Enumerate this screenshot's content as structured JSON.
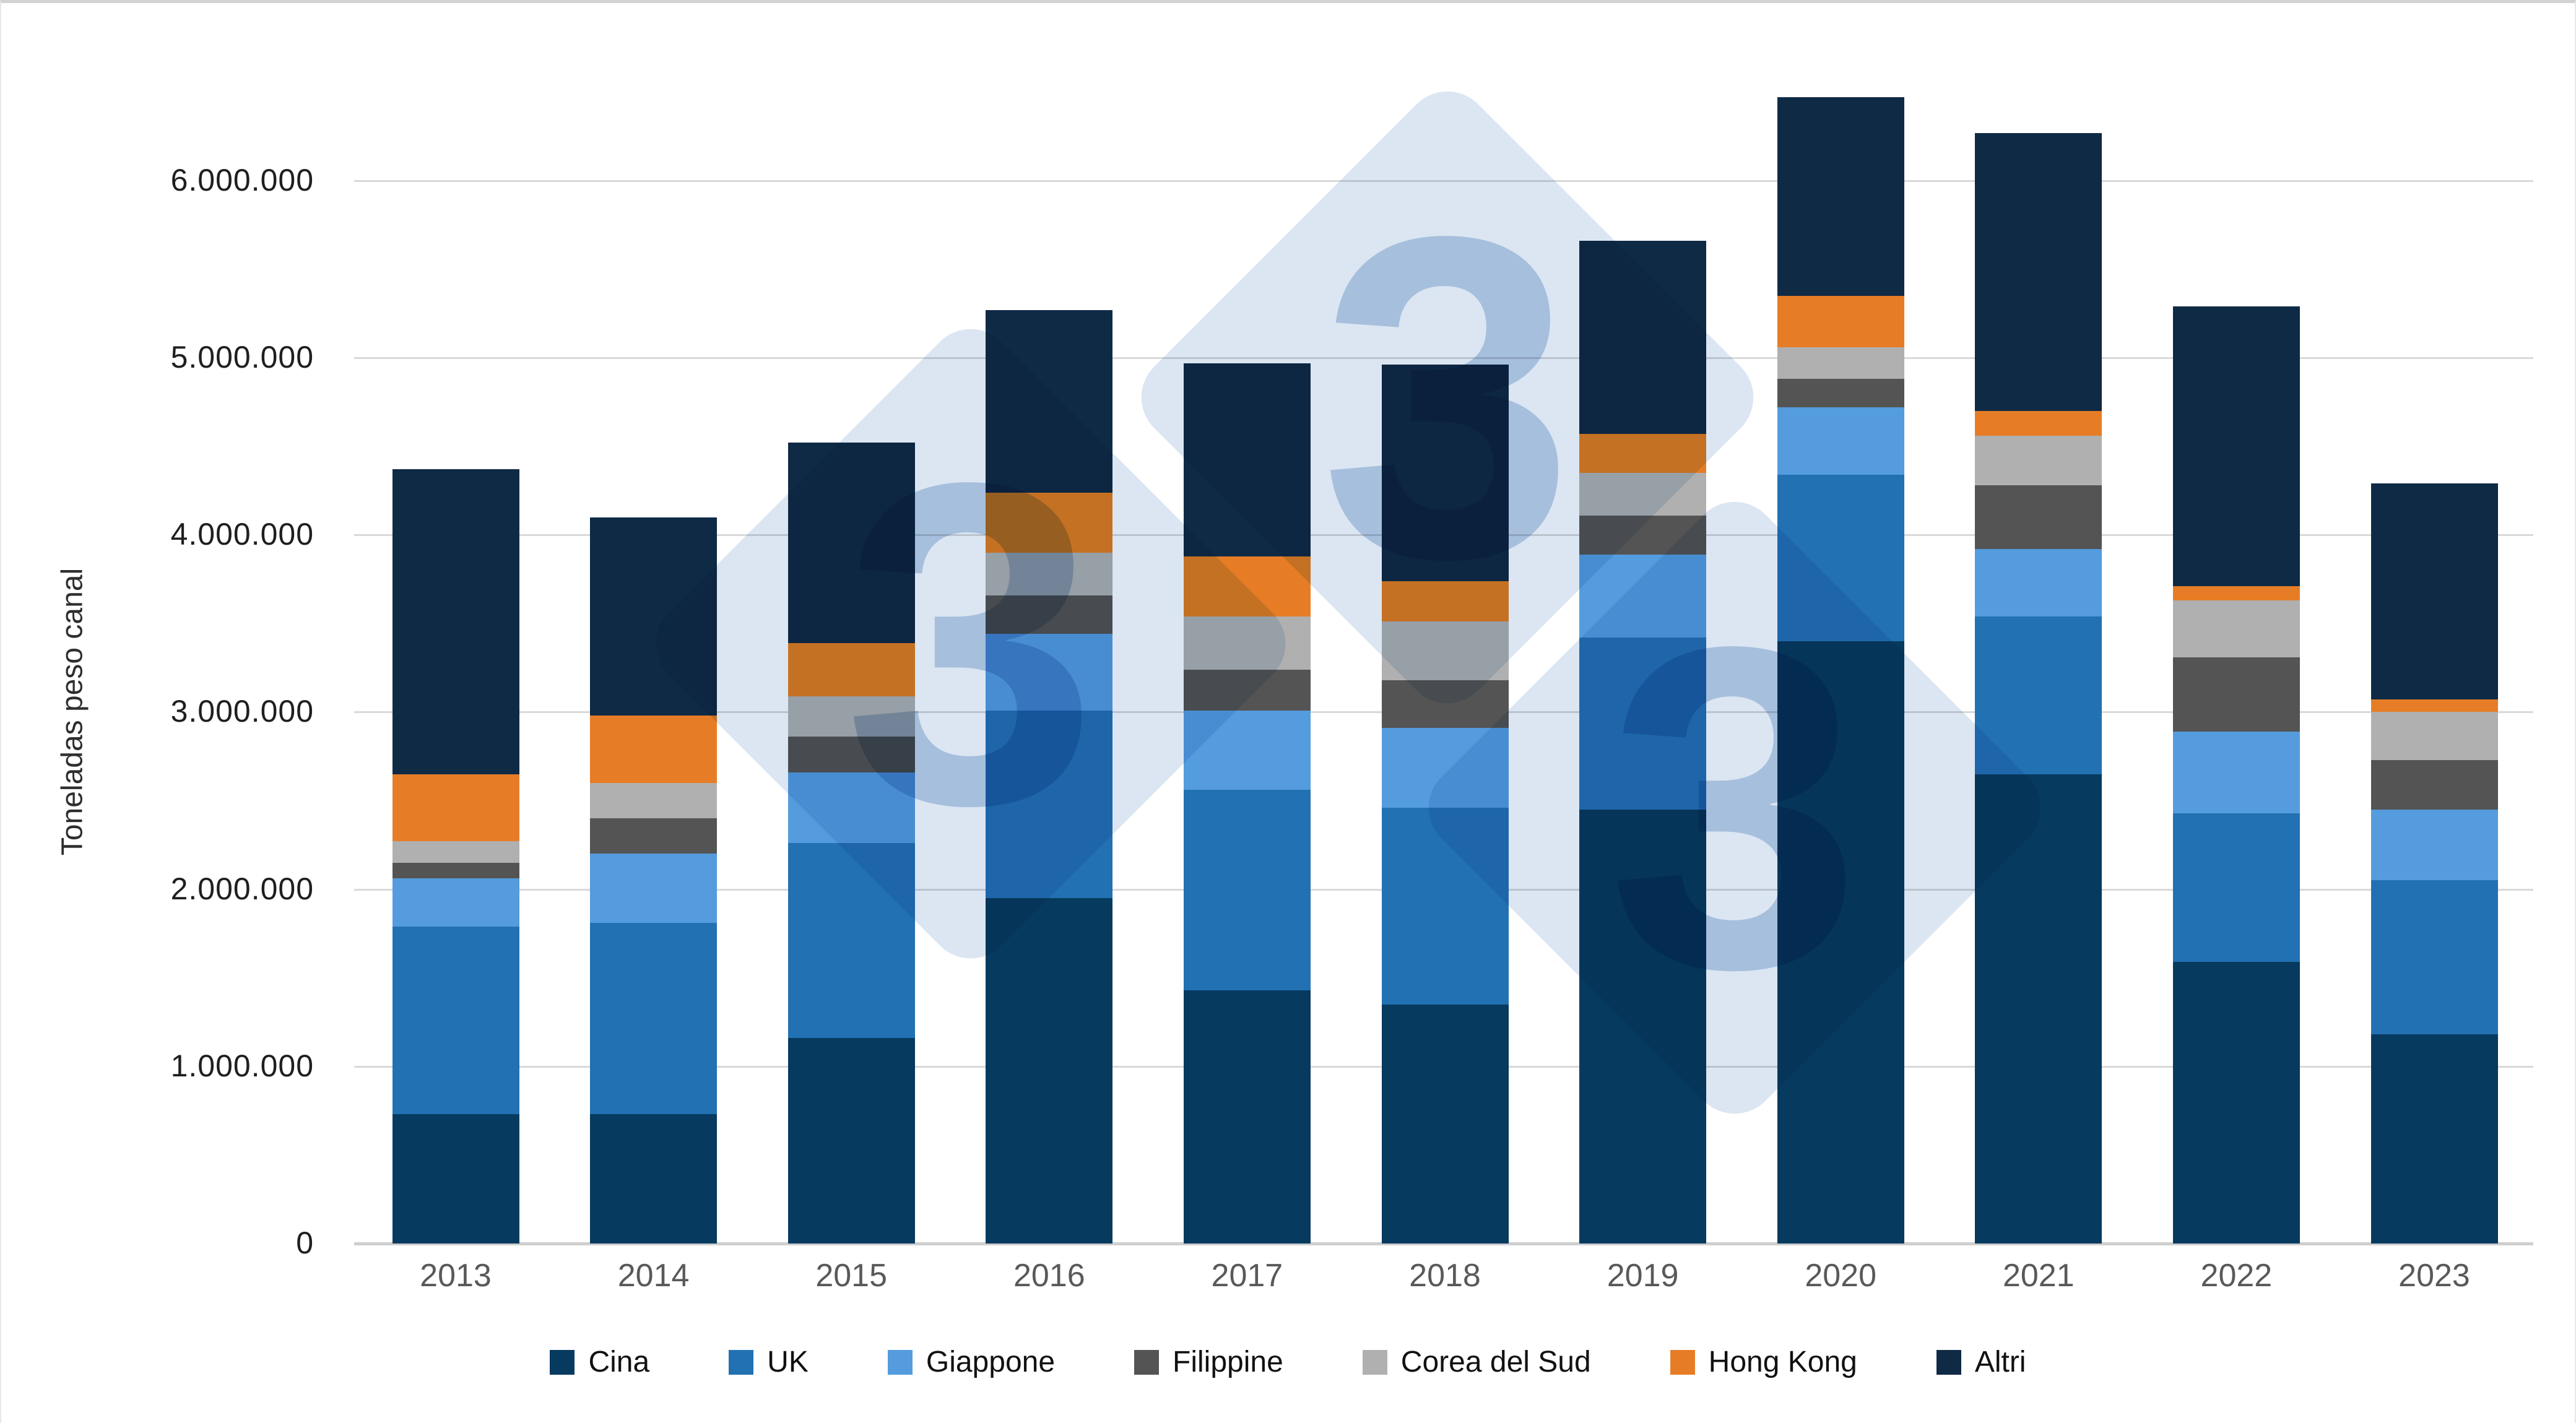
{
  "y_axis": {
    "title": "Toneladas peso canal",
    "ticks": [
      {
        "label": "6.000.000",
        "value": 6000000
      },
      {
        "label": "5.000.000",
        "value": 5000000
      },
      {
        "label": "4.000.000",
        "value": 4000000
      },
      {
        "label": "3.000.000",
        "value": 3000000
      },
      {
        "label": "2.000.000",
        "value": 2000000
      },
      {
        "label": "1.000.000",
        "value": 1000000
      },
      {
        "label": "0",
        "value": 0
      }
    ]
  },
  "watermark": {
    "digit": "3",
    "diamond_color": "#dbe6f2",
    "digit_color": "#c2d4e9"
  },
  "colors": {
    "gridline": "#d9d9d9",
    "axis_line": "#cfcfcf",
    "x_label": "#595959",
    "y_label": "#1f1f1f"
  },
  "chart_data": {
    "type": "bar",
    "stacked": true,
    "title": "",
    "xlabel": "",
    "ylabel": "Toneladas peso canal",
    "ylim": [
      0,
      6580000
    ],
    "grid": true,
    "legend_position": "bottom",
    "categories": [
      "2013",
      "2014",
      "2015",
      "2016",
      "2017",
      "2018",
      "2019",
      "2020",
      "2021",
      "2022",
      "2023"
    ],
    "series": [
      {
        "name": "Cina",
        "color": "#063a5f",
        "values": [
          730000,
          730000,
          1160000,
          1950000,
          1430000,
          1350000,
          2450000,
          3400000,
          2650000,
          1590000,
          1180000
        ]
      },
      {
        "name": "UK",
        "color": "#2271b2",
        "values": [
          1060000,
          1080000,
          1100000,
          1060000,
          1130000,
          1110000,
          970000,
          940000,
          890000,
          840000,
          870000
        ]
      },
      {
        "name": "Giappone",
        "color": "#549cdd",
        "values": [
          270000,
          390000,
          400000,
          430000,
          450000,
          450000,
          470000,
          380000,
          380000,
          460000,
          400000
        ]
      },
      {
        "name": "Filippine",
        "color": "#545454",
        "values": [
          90000,
          200000,
          200000,
          220000,
          230000,
          270000,
          220000,
          160000,
          360000,
          420000,
          280000
        ]
      },
      {
        "name": "Corea del Sud",
        "color": "#b0b0b0",
        "values": [
          120000,
          200000,
          230000,
          240000,
          300000,
          330000,
          240000,
          180000,
          280000,
          320000,
          270000
        ]
      },
      {
        "name": "Hong Kong",
        "color": "#e67d26",
        "values": [
          380000,
          380000,
          300000,
          340000,
          340000,
          230000,
          220000,
          290000,
          140000,
          80000,
          70000
        ]
      },
      {
        "name": "Altri",
        "color": "#0f2a45",
        "values": [
          1720000,
          1120000,
          1130000,
          1030000,
          1090000,
          1220000,
          1090000,
          1120000,
          1570000,
          1580000,
          1220000
        ]
      }
    ]
  }
}
